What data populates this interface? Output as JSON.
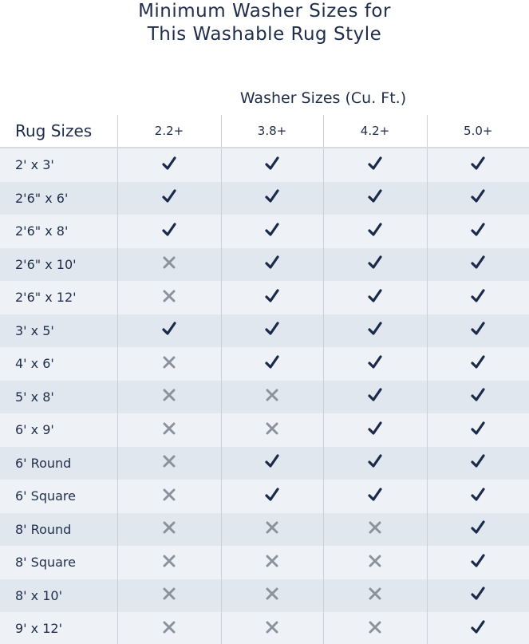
{
  "title": [
    "Minimum Washer Sizes for",
    "This Washable Rug Style"
  ],
  "washer_header": "Washer Sizes (Cu. Ft.)",
  "rug_header": "Rug Sizes",
  "columns": [
    "2.2+",
    "3.8+",
    "4.2+",
    "5.0+"
  ],
  "colors": {
    "check": "#1b2a4a",
    "cross": "#8a929c",
    "text": "#1f2d4a"
  },
  "rows": [
    {
      "size": "2' x 3'",
      "fits": [
        true,
        true,
        true,
        true
      ]
    },
    {
      "size": "2'6\" x 6'",
      "fits": [
        true,
        true,
        true,
        true
      ]
    },
    {
      "size": "2'6\" x 8'",
      "fits": [
        true,
        true,
        true,
        true
      ]
    },
    {
      "size": "2'6\" x 10'",
      "fits": [
        false,
        true,
        true,
        true
      ]
    },
    {
      "size": "2'6\" x 12'",
      "fits": [
        false,
        true,
        true,
        true
      ]
    },
    {
      "size": "3' x 5'",
      "fits": [
        true,
        true,
        true,
        true
      ]
    },
    {
      "size": "4' x 6'",
      "fits": [
        false,
        true,
        true,
        true
      ]
    },
    {
      "size": "5' x 8'",
      "fits": [
        false,
        false,
        true,
        true
      ]
    },
    {
      "size": "6' x 9'",
      "fits": [
        false,
        false,
        true,
        true
      ]
    },
    {
      "size": "6' Round",
      "fits": [
        false,
        true,
        true,
        true
      ]
    },
    {
      "size": "6' Square",
      "fits": [
        false,
        true,
        true,
        true
      ]
    },
    {
      "size": "8' Round",
      "fits": [
        false,
        false,
        false,
        true
      ]
    },
    {
      "size": "8' Square",
      "fits": [
        false,
        false,
        false,
        true
      ]
    },
    {
      "size": "8' x 10'",
      "fits": [
        false,
        false,
        false,
        true
      ]
    },
    {
      "size": "9' x 12'",
      "fits": [
        false,
        false,
        false,
        true
      ]
    }
  ]
}
